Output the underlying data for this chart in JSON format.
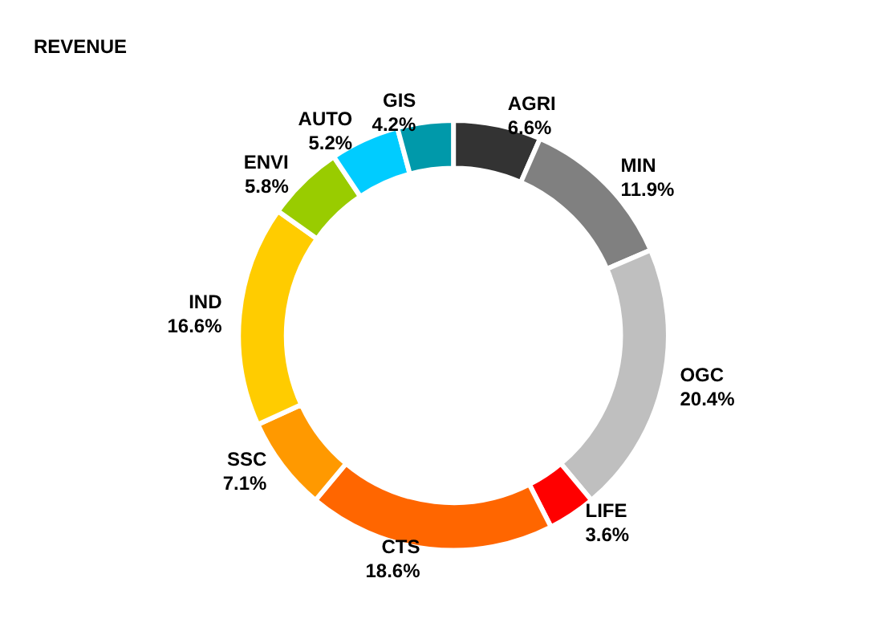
{
  "chart_data": {
    "type": "donut",
    "title": "REVENUE",
    "categories": [
      "AGRI",
      "MIN",
      "OGC",
      "LIFE",
      "CTS",
      "SSC",
      "IND",
      "ENVI",
      "AUTO",
      "GIS"
    ],
    "values": [
      6.6,
      11.9,
      20.4,
      3.6,
      18.6,
      7.1,
      16.6,
      5.8,
      5.2,
      4.2
    ],
    "value_labels": [
      "6.6%",
      "11.9%",
      "20.4%",
      "3.6%",
      "18.6%",
      "7.1%",
      "16.6%",
      "5.8%",
      "5.2%",
      "4.2%"
    ],
    "colors": [
      "#333333",
      "#808080",
      "#bfbfbf",
      "#ff0000",
      "#ff6600",
      "#ff9900",
      "#ffcc00",
      "#99cc00",
      "#00ccff",
      "#0099aa"
    ],
    "legend": false
  }
}
